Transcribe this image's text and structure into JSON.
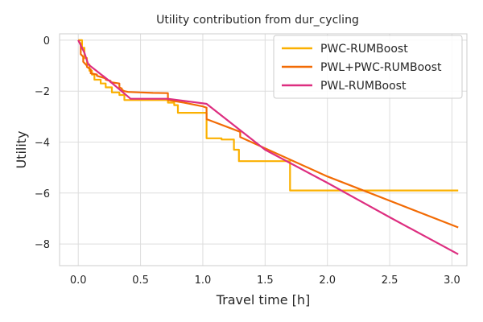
{
  "chart_data": {
    "type": "line",
    "title": "Utility contribution from dur_cycling",
    "xlabel": "Travel time [h]",
    "ylabel": "Utility",
    "xlim": [
      -0.15,
      3.12
    ],
    "ylim": [
      -8.85,
      0.25
    ],
    "xticks": [
      0.0,
      0.5,
      1.0,
      1.5,
      2.0,
      2.5,
      3.0
    ],
    "xtick_labels": [
      "0.0",
      "0.5",
      "1.0",
      "1.5",
      "2.0",
      "2.5",
      "3.0"
    ],
    "yticks": [
      0,
      -2,
      -4,
      -6,
      -8
    ],
    "ytick_labels": [
      "0",
      "−2",
      "−4",
      "−6",
      "−8"
    ],
    "grid": true,
    "legend_position": "top-right",
    "series": [
      {
        "name": "PWC-RUMBoost",
        "color": "#fbb000",
        "x": [
          0.0,
          0.03,
          0.03,
          0.05,
          0.05,
          0.07,
          0.07,
          0.09,
          0.09,
          0.11,
          0.11,
          0.13,
          0.13,
          0.18,
          0.18,
          0.22,
          0.22,
          0.27,
          0.27,
          0.33,
          0.33,
          0.37,
          0.37,
          0.72,
          0.72,
          0.77,
          0.77,
          0.8,
          0.8,
          1.03,
          1.03,
          1.15,
          1.15,
          1.25,
          1.25,
          1.29,
          1.29,
          1.7,
          1.7,
          3.05
        ],
        "y": [
          0.0,
          0.0,
          -0.3,
          -0.3,
          -0.7,
          -0.7,
          -0.95,
          -0.95,
          -1.2,
          -1.2,
          -1.35,
          -1.35,
          -1.55,
          -1.55,
          -1.7,
          -1.7,
          -1.85,
          -1.85,
          -2.05,
          -2.05,
          -2.15,
          -2.15,
          -2.35,
          -2.35,
          -2.45,
          -2.45,
          -2.55,
          -2.55,
          -2.85,
          -2.85,
          -3.85,
          -3.85,
          -3.9,
          -3.9,
          -4.3,
          -4.3,
          -4.75,
          -4.75,
          -5.9,
          -5.9
        ]
      },
      {
        "name": "PWL+PWC-RUMBoost",
        "color": "#f26b05",
        "x": [
          0.0,
          0.02,
          0.02,
          0.04,
          0.04,
          0.07,
          0.07,
          0.1,
          0.1,
          0.15,
          0.15,
          0.22,
          0.22,
          0.26,
          0.26,
          0.33,
          0.33,
          0.35,
          0.35,
          0.37,
          0.4,
          0.5,
          0.6,
          0.72,
          0.72,
          0.85,
          1.0,
          1.03,
          1.03,
          1.3,
          1.3,
          2.0,
          3.05
        ],
        "y": [
          0.0,
          -0.15,
          -0.55,
          -0.65,
          -0.85,
          -1.0,
          -1.05,
          -1.15,
          -1.3,
          -1.35,
          -1.4,
          -1.5,
          -1.55,
          -1.6,
          -1.65,
          -1.7,
          -1.85,
          -1.9,
          -1.95,
          -2.0,
          -2.03,
          -2.05,
          -2.07,
          -2.08,
          -2.35,
          -2.45,
          -2.6,
          -2.65,
          -3.1,
          -3.6,
          -3.8,
          -5.35,
          -7.35
        ]
      },
      {
        "name": "PWL-RUMBoost",
        "color": "#dd2e80",
        "x": [
          0.0,
          0.05,
          0.08,
          0.25,
          0.42,
          0.72,
          1.03,
          1.5,
          2.0,
          2.5,
          3.05
        ],
        "y": [
          0.0,
          -0.5,
          -0.95,
          -1.6,
          -2.3,
          -2.3,
          -2.5,
          -4.3,
          -5.6,
          -6.95,
          -8.4
        ]
      }
    ]
  }
}
